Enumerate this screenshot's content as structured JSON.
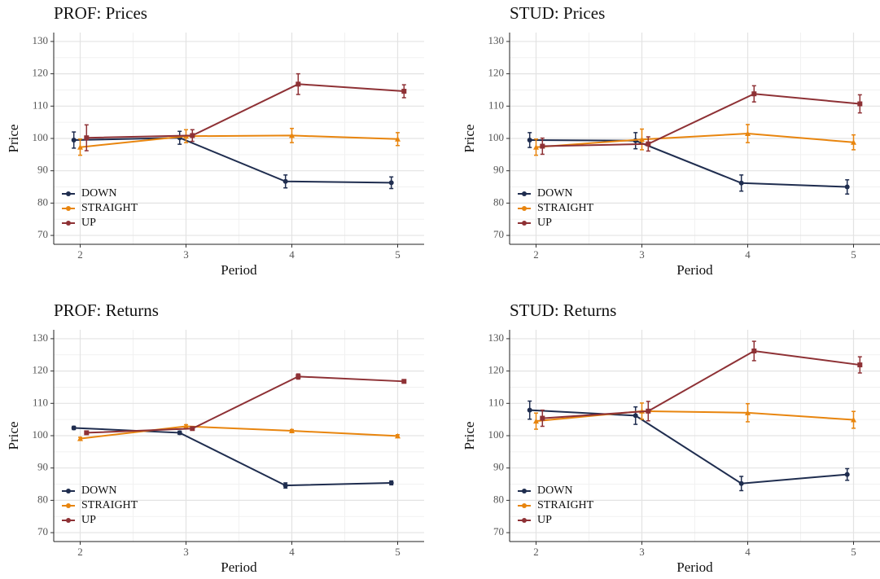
{
  "chart_data": [
    {
      "type": "line",
      "title": "PROF: Prices",
      "x_label": "Period",
      "y_label": "Price",
      "x": [
        2,
        3,
        4,
        5
      ],
      "xlim": [
        1.75,
        5.25
      ],
      "xticks": [
        2,
        3,
        4,
        5
      ],
      "ylim": [
        67.25,
        132.75
      ],
      "yticks": [
        70,
        80,
        90,
        100,
        110,
        120,
        130
      ],
      "grid": true,
      "legend": "bottom-left",
      "series": [
        {
          "name": "DOWN",
          "color": "#1f2d4f",
          "marker": "circle",
          "values": [
            99.5,
            100.2,
            86.7,
            86.3
          ],
          "errors": [
            2.5,
            2.0,
            2.0,
            1.8
          ]
        },
        {
          "name": "STRAIGHT",
          "color": "#e8850e",
          "marker": "triangle",
          "values": [
            97.3,
            100.7,
            100.9,
            99.8
          ],
          "errors": [
            2.5,
            2.0,
            2.2,
            2.0
          ]
        },
        {
          "name": "UP",
          "color": "#8e3135",
          "marker": "square",
          "values": [
            100.2,
            100.9,
            116.8,
            114.6
          ],
          "errors": [
            4.0,
            1.8,
            3.2,
            2.0
          ]
        }
      ]
    },
    {
      "type": "line",
      "title": "STUD: Prices",
      "x_label": "Period",
      "y_label": "Price",
      "x": [
        2,
        3,
        4,
        5
      ],
      "xlim": [
        1.75,
        5.25
      ],
      "xticks": [
        2,
        3,
        4,
        5
      ],
      "ylim": [
        67.25,
        132.75
      ],
      "yticks": [
        70,
        80,
        90,
        100,
        110,
        120,
        130
      ],
      "grid": true,
      "legend": "bottom-left",
      "series": [
        {
          "name": "DOWN",
          "color": "#1f2d4f",
          "marker": "circle",
          "values": [
            99.5,
            99.3,
            86.2,
            85.0
          ],
          "errors": [
            2.3,
            2.5,
            2.5,
            2.2
          ]
        },
        {
          "name": "STRAIGHT",
          "color": "#e8850e",
          "marker": "triangle",
          "values": [
            97.3,
            99.7,
            101.5,
            98.8
          ],
          "errors": [
            2.5,
            3.2,
            2.8,
            2.3
          ]
        },
        {
          "name": "UP",
          "color": "#8e3135",
          "marker": "square",
          "values": [
            97.6,
            98.3,
            113.8,
            110.7
          ],
          "errors": [
            2.5,
            2.2,
            2.5,
            2.8
          ]
        }
      ]
    },
    {
      "type": "line",
      "title": "PROF: Returns",
      "x_label": "Period",
      "y_label": "Price",
      "x": [
        2,
        3,
        4,
        5
      ],
      "xlim": [
        1.75,
        5.25
      ],
      "xticks": [
        2,
        3,
        4,
        5
      ],
      "ylim": [
        67.25,
        132.75
      ],
      "yticks": [
        70,
        80,
        90,
        100,
        110,
        120,
        130
      ],
      "grid": true,
      "legend": "bottom-left",
      "series": [
        {
          "name": "DOWN",
          "color": "#1f2d4f",
          "marker": "circle",
          "values": [
            102.4,
            100.9,
            84.6,
            85.4
          ],
          "errors": [
            0.5,
            0.5,
            0.8,
            0.6
          ]
        },
        {
          "name": "STRAIGHT",
          "color": "#e8850e",
          "marker": "triangle",
          "values": [
            99.1,
            102.9,
            101.5,
            99.9
          ],
          "errors": [
            0.4,
            0.5,
            0.4,
            0.4
          ]
        },
        {
          "name": "UP",
          "color": "#8e3135",
          "marker": "square",
          "values": [
            100.9,
            102.2,
            118.3,
            116.8
          ],
          "errors": [
            0.4,
            0.5,
            0.8,
            0.5
          ]
        }
      ]
    },
    {
      "type": "line",
      "title": "STUD: Returns",
      "x_label": "Period",
      "y_label": "Price",
      "x": [
        2,
        3,
        4,
        5
      ],
      "xlim": [
        1.75,
        5.25
      ],
      "xticks": [
        2,
        3,
        4,
        5
      ],
      "ylim": [
        67.25,
        132.75
      ],
      "yticks": [
        70,
        80,
        90,
        100,
        110,
        120,
        130
      ],
      "grid": true,
      "legend": "bottom-left",
      "series": [
        {
          "name": "DOWN",
          "color": "#1f2d4f",
          "marker": "circle",
          "values": [
            107.9,
            106.2,
            85.2,
            88.0
          ],
          "errors": [
            2.8,
            2.7,
            2.2,
            1.8
          ]
        },
        {
          "name": "STRAIGHT",
          "color": "#e8850e",
          "marker": "triangle",
          "values": [
            104.5,
            107.6,
            107.1,
            104.9
          ],
          "errors": [
            2.5,
            2.5,
            2.8,
            2.6
          ]
        },
        {
          "name": "UP",
          "color": "#8e3135",
          "marker": "square",
          "values": [
            105.4,
            107.6,
            126.2,
            121.9
          ],
          "errors": [
            2.5,
            3.0,
            3.0,
            2.5
          ]
        }
      ]
    }
  ]
}
